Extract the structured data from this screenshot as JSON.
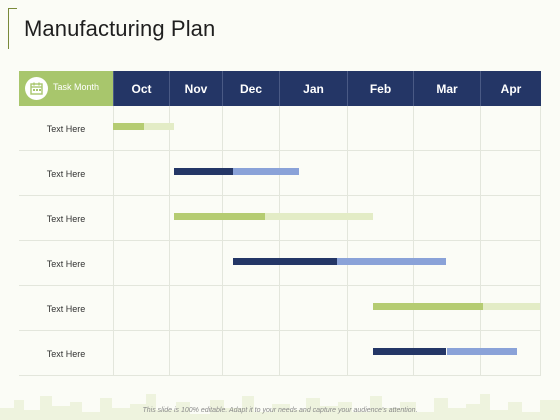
{
  "title": "Manufacturing Plan",
  "footer": "This slide is 100% editable. Adapt it to your needs and capture your audience's attention.",
  "colors": {
    "header_bg": "#243666",
    "task_header_bg": "#a8c66c",
    "green_dark": "#b5cc72",
    "green_light": "#e3ecc6",
    "navy": "#243666",
    "blue_light": "#8aa2d8"
  },
  "chart_data": {
    "type": "gantt",
    "task_header": "Task Month",
    "months": [
      "Oct",
      "Nov",
      "Dec",
      "Jan",
      "Feb",
      "Mar",
      "Apr"
    ],
    "tasks": [
      {
        "label": "Text Here",
        "style": "green",
        "start": 0.0,
        "mid": 0.55,
        "end": 1.1
      },
      {
        "label": "Text Here",
        "style": "navy",
        "start": 1.1,
        "mid": 2.2,
        "end": 3.3
      },
      {
        "label": "Text Here",
        "style": "green",
        "start": 1.1,
        "mid": 2.75,
        "end": 4.4
      },
      {
        "label": "Text Here",
        "style": "navy",
        "start": 2.2,
        "mid": 3.85,
        "end": 5.5
      },
      {
        "label": "Text Here",
        "style": "green",
        "start": 4.4,
        "mid": 6.05,
        "end": 7.7
      },
      {
        "label": "Text Here",
        "style": "navy",
        "start": 4.4,
        "mid": 5.5,
        "end": 6.6
      }
    ]
  }
}
